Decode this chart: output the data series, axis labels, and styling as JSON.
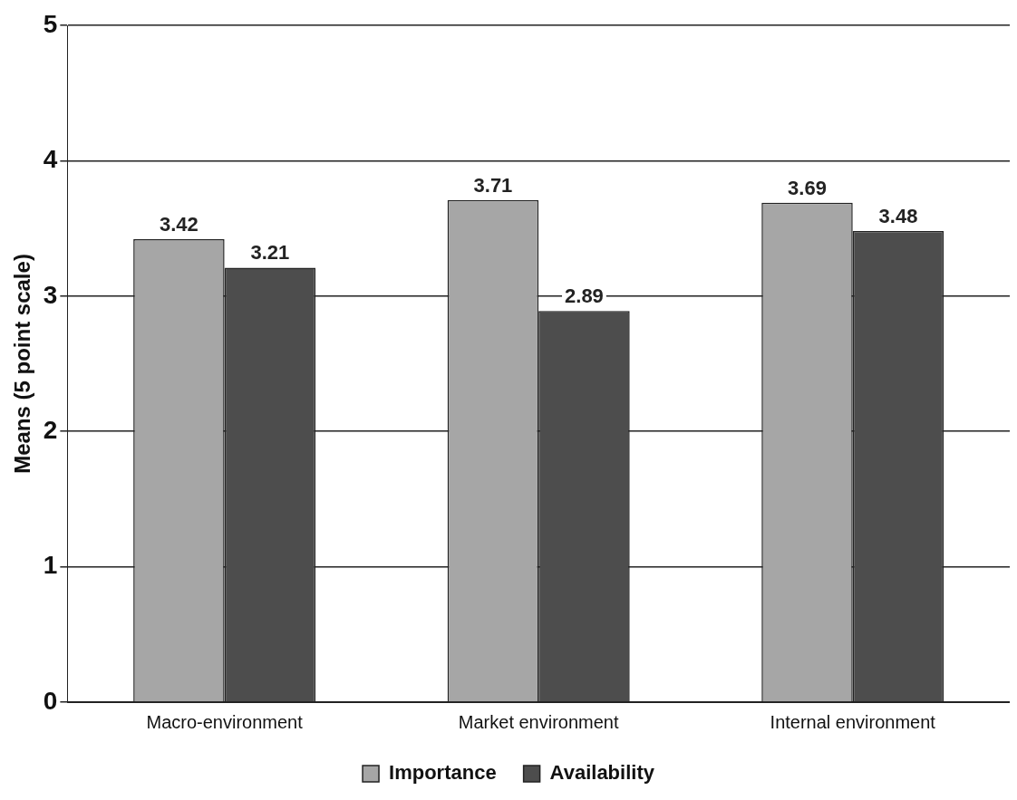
{
  "chart_data": {
    "type": "bar",
    "ylabel": "Means (5 point scale)",
    "categories": [
      "Macro-environment",
      "Market environment",
      "Internal environment"
    ],
    "series": [
      {
        "name": "Importance",
        "color": "#a6a6a6",
        "values": [
          3.42,
          3.71,
          3.69
        ]
      },
      {
        "name": "Availability",
        "color": "#4d4d4d",
        "values": [
          3.21,
          2.89,
          3.48
        ]
      }
    ],
    "ylim": [
      0,
      5
    ],
    "yticks": [
      0,
      1,
      2,
      3,
      4,
      5
    ],
    "grid": "y",
    "legend": "bottom",
    "data_labels": true
  }
}
